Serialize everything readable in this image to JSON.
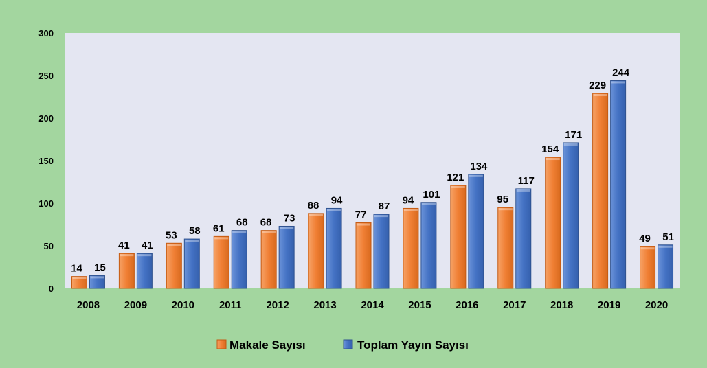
{
  "chart_data": {
    "type": "bar",
    "categories": [
      "2008",
      "2009",
      "2010",
      "2011",
      "2012",
      "2013",
      "2014",
      "2015",
      "2016",
      "2017",
      "2018",
      "2019",
      "2020"
    ],
    "series": [
      {
        "name": "Makale Sayısı",
        "values": [
          14,
          41,
          53,
          61,
          68,
          88,
          77,
          94,
          121,
          95,
          154,
          229,
          49
        ]
      },
      {
        "name": "Toplam Yayın Sayısı",
        "values": [
          15,
          41,
          58,
          68,
          73,
          94,
          87,
          101,
          134,
          117,
          171,
          244,
          51
        ]
      }
    ],
    "title": "",
    "xlabel": "",
    "ylabel": "",
    "ylim": [
      0,
      300
    ],
    "yticks": [
      0,
      50,
      100,
      150,
      200,
      250,
      300
    ],
    "grid": false,
    "legend_position": "bottom",
    "data_labels": true
  },
  "colors": {
    "page_background": "#a3d69f",
    "plot_background": "#e4e6f2",
    "series": [
      "#f07f34",
      "#4472c4"
    ],
    "series_edge": [
      "#c55a11",
      "#2f528f"
    ],
    "text": "#000000"
  }
}
